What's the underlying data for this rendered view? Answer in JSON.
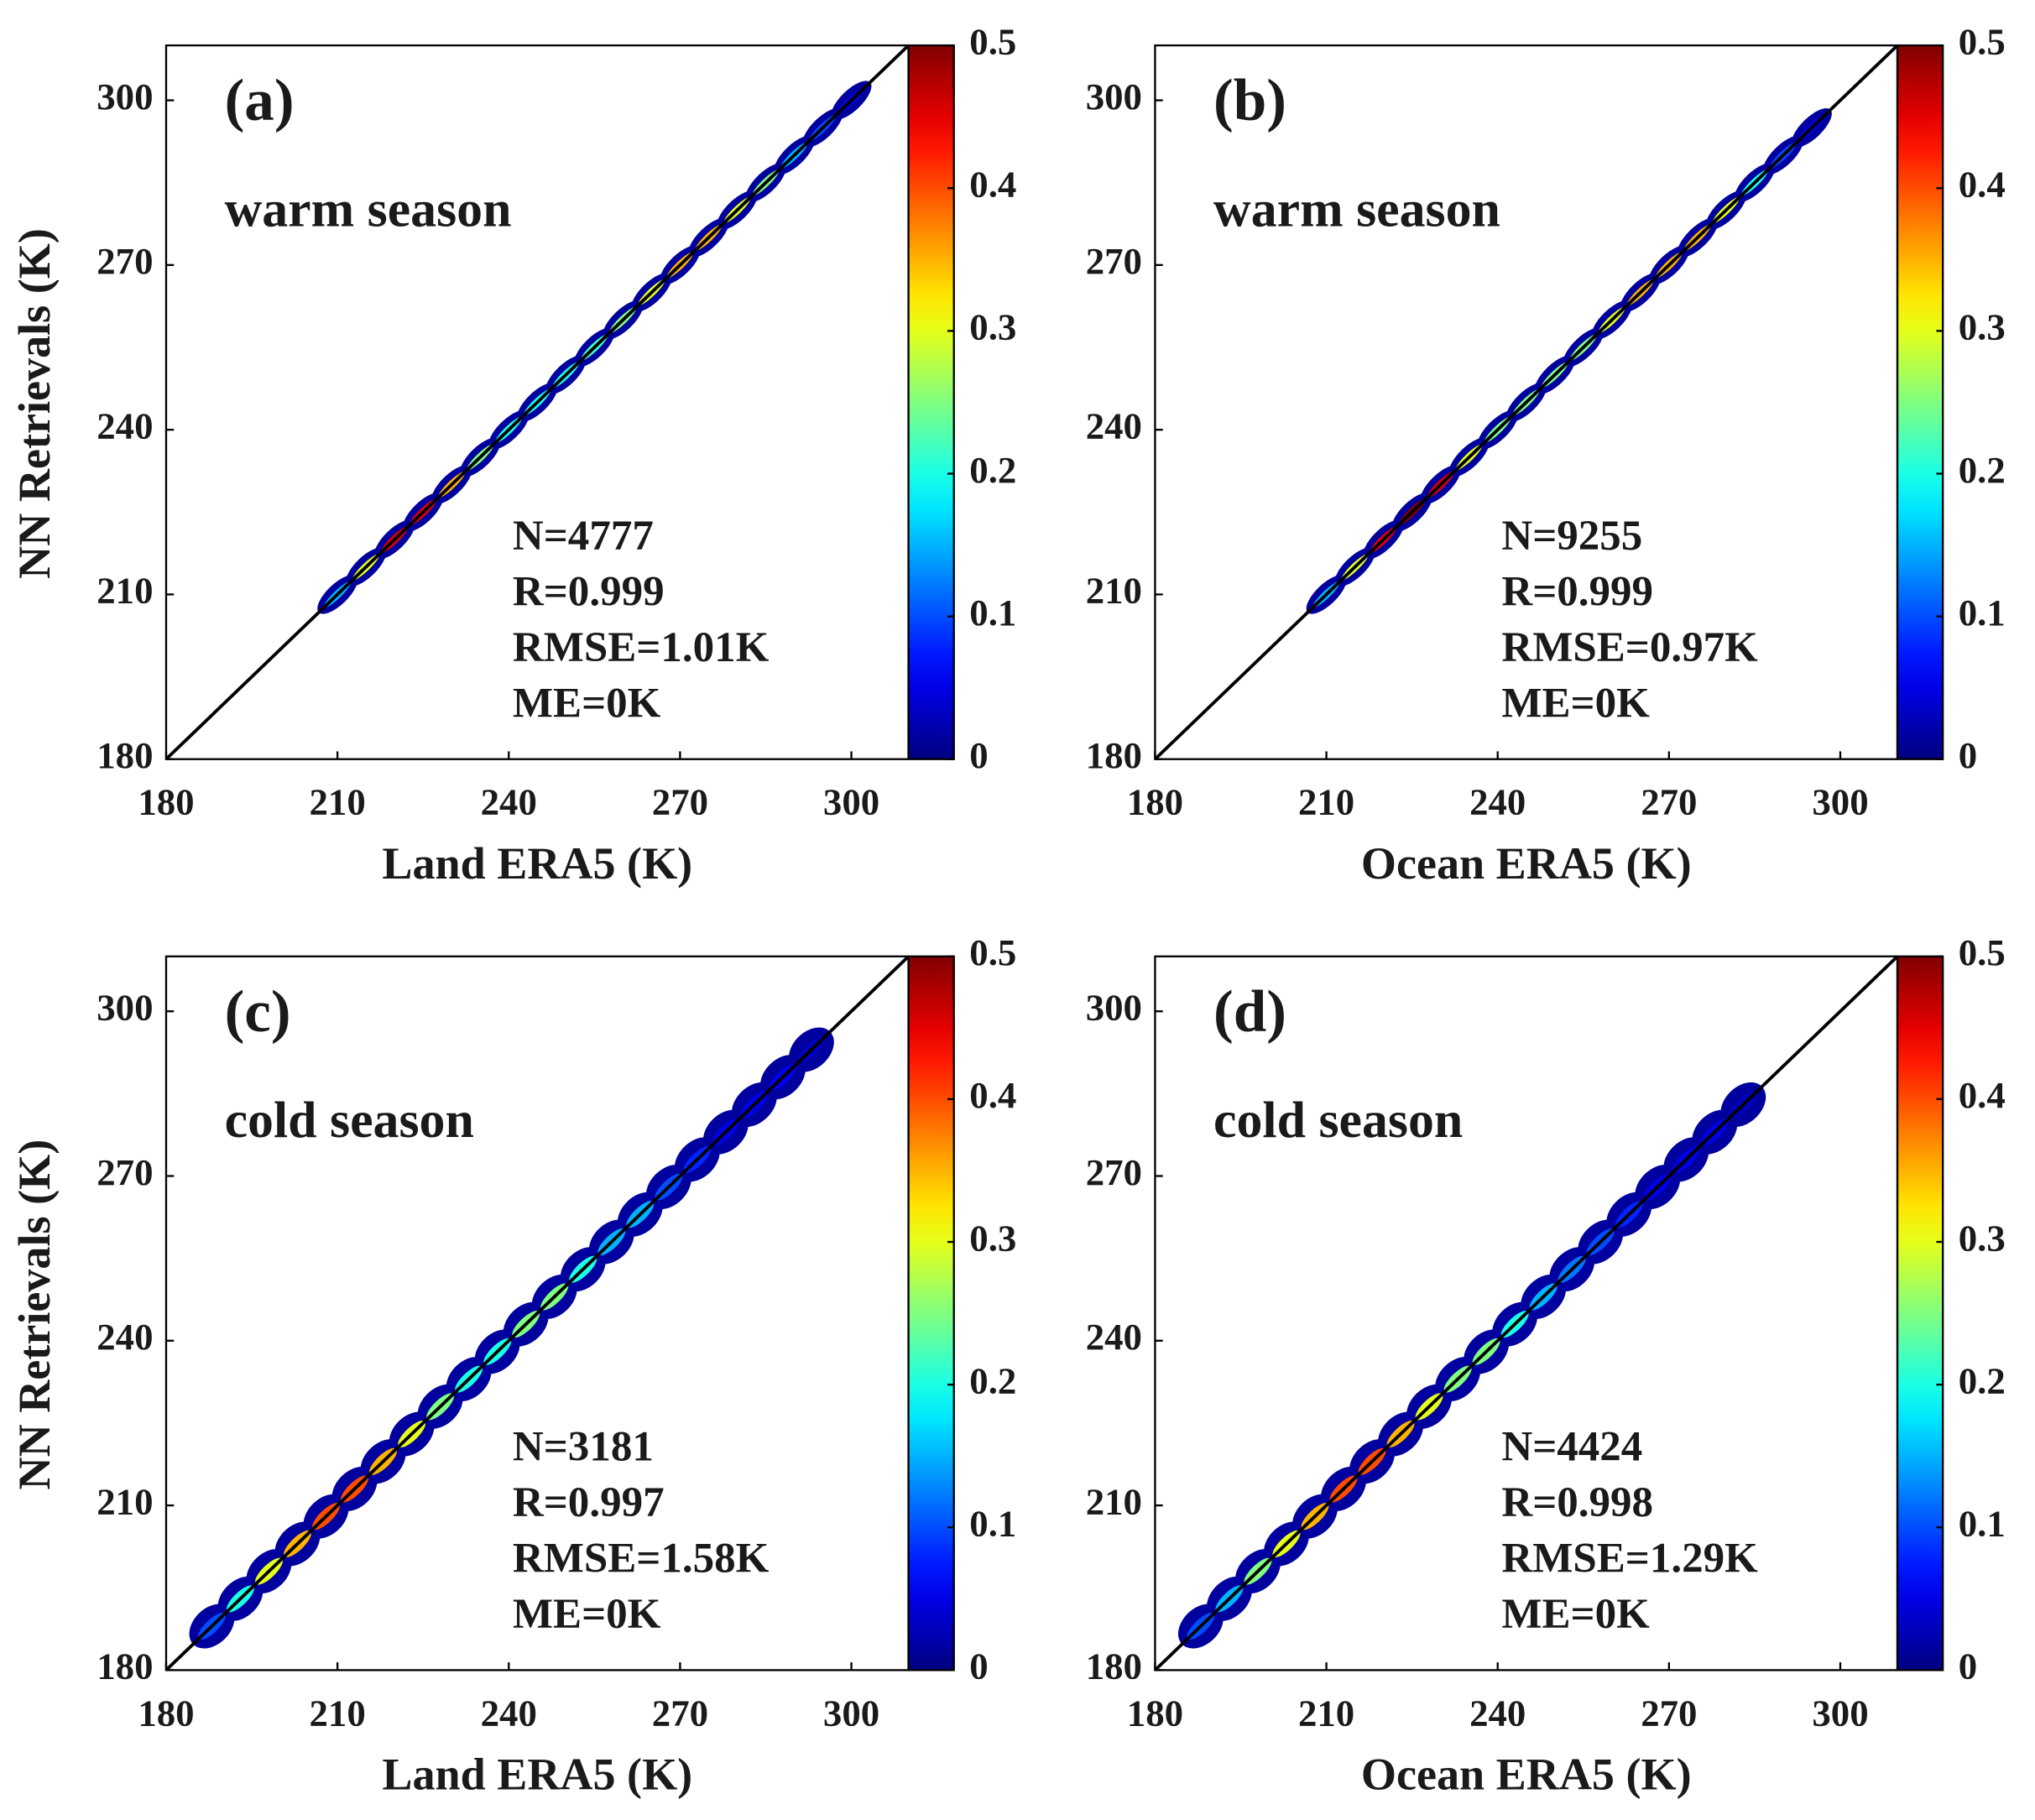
{
  "chart_data": [
    {
      "type": "scatter",
      "label": "(a)",
      "subtitle": "warm season",
      "xlabel": "Land ERA5 (K)",
      "ylabel": "NN Retrievals (K)",
      "xlim": [
        180,
        310
      ],
      "ylim": [
        180,
        310
      ],
      "xticks": [
        180,
        210,
        240,
        270,
        300
      ],
      "yticks": [
        180,
        210,
        240,
        270,
        300
      ],
      "stats": [
        "N=4777",
        "R=0.999",
        "RMSE=1.01K",
        "ME=0K"
      ],
      "x": [
        210,
        215,
        220,
        225,
        230,
        235,
        240,
        245,
        250,
        255,
        260,
        265,
        270,
        275,
        280,
        285,
        290,
        295,
        300
      ],
      "y": [
        210,
        215,
        220,
        225,
        230,
        235,
        240,
        245,
        250,
        255,
        260,
        265,
        270,
        275,
        280,
        285,
        290,
        295,
        300
      ],
      "density": [
        0.15,
        0.3,
        0.45,
        0.45,
        0.35,
        0.25,
        0.2,
        0.2,
        0.2,
        0.22,
        0.25,
        0.3,
        0.35,
        0.35,
        0.3,
        0.25,
        0.15,
        0.1,
        0.05
      ],
      "colormap": "jet",
      "clim": [
        0,
        0.5
      ],
      "cticks": [
        0,
        0.1,
        0.2,
        0.3,
        0.4,
        0.5
      ]
    },
    {
      "type": "scatter",
      "label": "(b)",
      "subtitle": "warm season",
      "xlabel": "Ocean ERA5 (K)",
      "xlim": [
        180,
        310
      ],
      "ylim": [
        180,
        310
      ],
      "xticks": [
        180,
        210,
        240,
        270,
        300
      ],
      "yticks": [
        180,
        210,
        240,
        270,
        300
      ],
      "stats": [
        "N=9255",
        "R=0.999",
        "RMSE=0.97K",
        "ME=0K"
      ],
      "x": [
        210,
        215,
        220,
        225,
        230,
        235,
        240,
        245,
        250,
        255,
        260,
        265,
        270,
        275,
        280,
        285,
        290,
        295
      ],
      "y": [
        210,
        215,
        220,
        225,
        230,
        235,
        240,
        245,
        250,
        255,
        260,
        265,
        270,
        275,
        280,
        285,
        290,
        295
      ],
      "density": [
        0.15,
        0.3,
        0.45,
        0.5,
        0.45,
        0.3,
        0.25,
        0.25,
        0.25,
        0.25,
        0.3,
        0.35,
        0.35,
        0.35,
        0.3,
        0.2,
        0.1,
        0.05
      ],
      "colormap": "jet",
      "clim": [
        0,
        0.5
      ],
      "cticks": [
        0,
        0.1,
        0.2,
        0.3,
        0.4,
        0.5
      ]
    },
    {
      "type": "scatter",
      "label": "(c)",
      "subtitle": "cold season",
      "xlabel": "Land ERA5 (K)",
      "ylabel": "NN Retrievals (K)",
      "xlim": [
        180,
        310
      ],
      "ylim": [
        180,
        310
      ],
      "xticks": [
        180,
        210,
        240,
        270,
        300
      ],
      "yticks": [
        180,
        210,
        240,
        270,
        300
      ],
      "stats": [
        "N=3181",
        "R=0.997",
        "RMSE=1.58K",
        "ME=0K"
      ],
      "x": [
        188,
        193,
        198,
        203,
        208,
        213,
        218,
        223,
        228,
        233,
        238,
        243,
        248,
        253,
        258,
        263,
        268,
        273,
        278,
        283,
        288,
        293
      ],
      "y": [
        188,
        193,
        198,
        203,
        208,
        213,
        218,
        223,
        228,
        233,
        238,
        243,
        248,
        253,
        258,
        263,
        268,
        273,
        278,
        283,
        288,
        293
      ],
      "density": [
        0.1,
        0.2,
        0.3,
        0.35,
        0.4,
        0.4,
        0.35,
        0.3,
        0.25,
        0.2,
        0.2,
        0.25,
        0.25,
        0.2,
        0.15,
        0.15,
        0.1,
        0.08,
        0.05,
        0.05,
        0.05,
        0.03
      ],
      "colormap": "jet",
      "clim": [
        0,
        0.5
      ],
      "cticks": [
        0,
        0.1,
        0.2,
        0.3,
        0.4,
        0.5
      ]
    },
    {
      "type": "scatter",
      "label": "(d)",
      "subtitle": "cold season",
      "xlabel": "Ocean ERA5 (K)",
      "xlim": [
        180,
        310
      ],
      "ylim": [
        180,
        310
      ],
      "xticks": [
        180,
        210,
        240,
        270,
        300
      ],
      "yticks": [
        180,
        210,
        240,
        270,
        300
      ],
      "stats": [
        "N=4424",
        "R=0.998",
        "RMSE=1.29K",
        "ME=0K"
      ],
      "x": [
        188,
        193,
        198,
        203,
        208,
        213,
        218,
        223,
        228,
        233,
        238,
        243,
        248,
        253,
        258,
        263,
        268,
        273,
        278,
        283
      ],
      "y": [
        188,
        193,
        198,
        203,
        208,
        213,
        218,
        223,
        228,
        233,
        238,
        243,
        248,
        253,
        258,
        263,
        268,
        273,
        278,
        283
      ],
      "density": [
        0.1,
        0.15,
        0.25,
        0.3,
        0.35,
        0.4,
        0.4,
        0.35,
        0.3,
        0.25,
        0.25,
        0.2,
        0.15,
        0.12,
        0.1,
        0.08,
        0.05,
        0.05,
        0.05,
        0.03
      ],
      "colormap": "jet",
      "clim": [
        0,
        0.5
      ],
      "cticks": [
        0,
        0.1,
        0.2,
        0.3,
        0.4,
        0.5
      ]
    }
  ]
}
